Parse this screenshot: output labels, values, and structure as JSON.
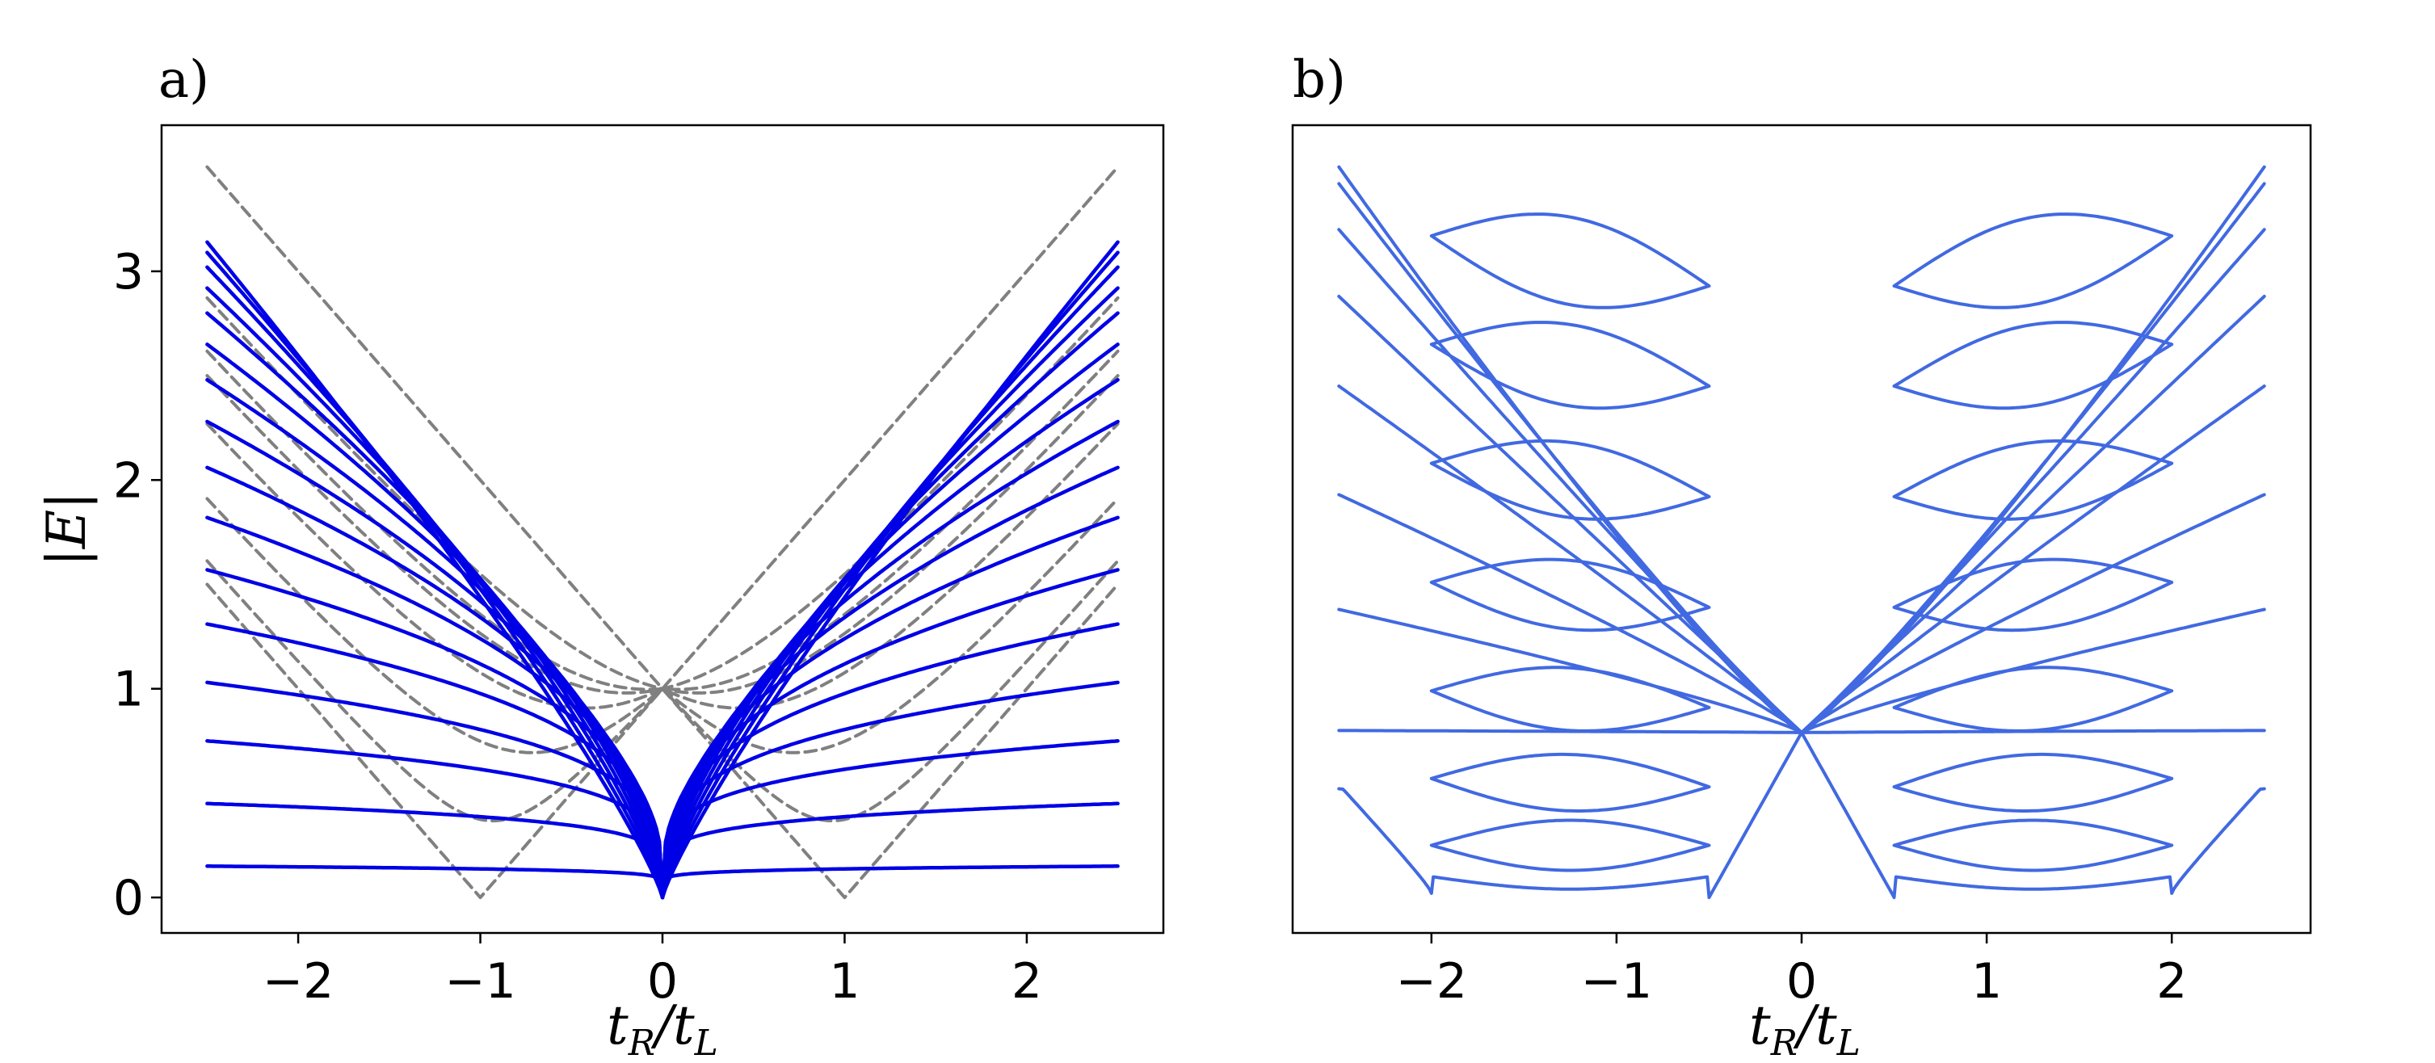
{
  "chart_data": [
    {
      "type": "line",
      "panel_label": "a)",
      "xlabel": "t_R/t_L",
      "ylabel": "|E|",
      "xlim": [
        -2.75,
        2.75
      ],
      "ylim": [
        -0.17,
        3.7
      ],
      "xticks": [
        -2,
        -1,
        0,
        1,
        2
      ],
      "xtick_labels": [
        "−2",
        "−1",
        "0",
        "1",
        "2"
      ],
      "yticks": [
        0,
        1,
        2,
        3
      ],
      "ytick_labels": [
        "0",
        "1",
        "2",
        "3"
      ],
      "grid": false,
      "colors": {
        "solid": "#0000e6",
        "dashed": "#808080"
      },
      "solid_series": {
        "style": "solid",
        "x_range": [
          -2.5,
          2.5
        ],
        "values_at_x_2_5": [
          0.15,
          0.45,
          0.75,
          1.03,
          1.31,
          1.57,
          1.82,
          2.06,
          2.28,
          2.48,
          2.65,
          2.8,
          2.92,
          3.02,
          3.09,
          3.14
        ],
        "value_at_x_0": 0.0
      },
      "dashed_series": {
        "style": "dashed",
        "x_range": [
          -2.5,
          2.5
        ],
        "value_at_x_0": 1.0,
        "values_at_x_2_5": [
          1.5,
          1.6,
          1.9,
          2.3,
          2.67,
          2.68,
          3.0,
          3.25,
          3.35,
          3.5
        ],
        "zero_crossings": [
          -1,
          1
        ],
        "local_minima": [
          0.38,
          0.72,
          0.9,
          0.96
        ]
      }
    },
    {
      "type": "line",
      "panel_label": "b)",
      "xlabel": "t_R/t_L",
      "xlim": [
        -2.75,
        2.75
      ],
      "ylim": [
        -0.17,
        3.7
      ],
      "xticks": [
        -2,
        -1,
        0,
        1,
        2
      ],
      "xtick_labels": [
        "−2",
        "−1",
        "0",
        "1",
        "2"
      ],
      "grid": false,
      "colors": {
        "line": "#4169e1"
      },
      "series": {
        "style": "solid",
        "x_range": [
          -2.5,
          2.5
        ],
        "value_at_x_0": 0.79,
        "zeros_at": [
          -2,
          -0.5,
          0.5,
          2
        ],
        "values_at_x_2_5": [
          0.45,
          0.8,
          1.38,
          1.93,
          2.45,
          2.88,
          3.2,
          3.42,
          3.5
        ],
        "bubble_tips_at": [
          -2,
          -0.5,
          0.5,
          2
        ]
      }
    }
  ]
}
